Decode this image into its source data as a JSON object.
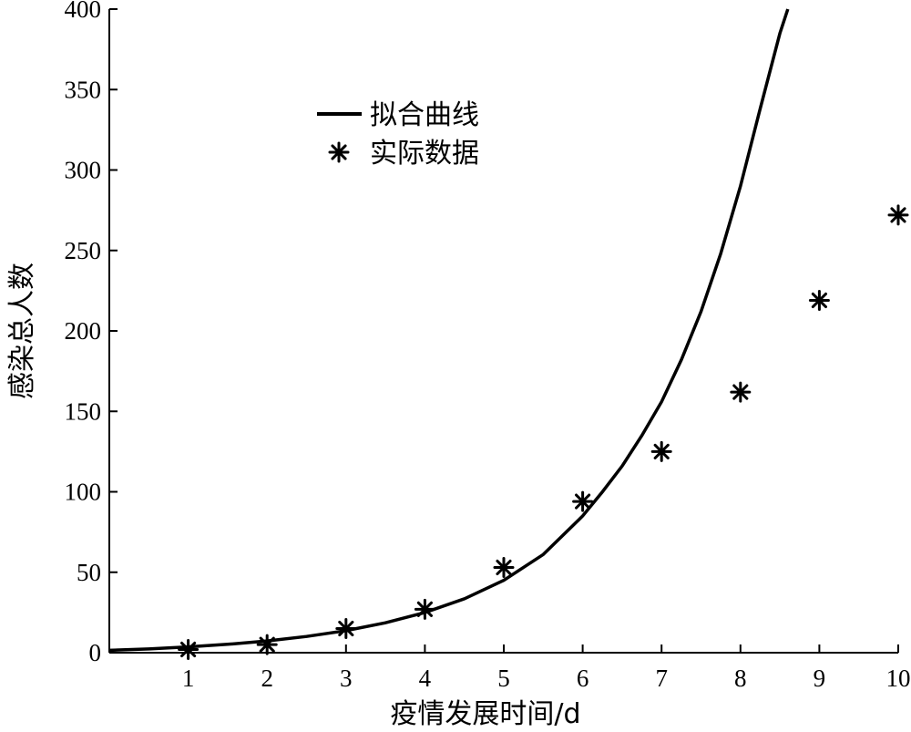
{
  "chart_data": {
    "type": "line",
    "title": "",
    "xlabel": "疫情发展时间/d",
    "ylabel": "感染总人数",
    "xlim": [
      0,
      10
    ],
    "ylim": [
      0,
      400
    ],
    "xticks": [
      1,
      2,
      3,
      4,
      5,
      6,
      7,
      8,
      9,
      10
    ],
    "yticks": [
      0,
      50,
      100,
      150,
      200,
      250,
      300,
      350,
      400
    ],
    "grid": false,
    "legend_position": "upper-left",
    "series": [
      {
        "name": "拟合曲线",
        "style": "line",
        "color": "#000000",
        "x": [
          0,
          0.5,
          1,
          1.5,
          2,
          2.5,
          3,
          3.5,
          4,
          4.5,
          5,
          5.5,
          6,
          6.25,
          6.5,
          6.75,
          7,
          7.25,
          7.5,
          7.75,
          8,
          8.25,
          8.5,
          8.6
        ],
        "y": [
          1.5,
          2.3,
          3.6,
          5.2,
          7.3,
          10.1,
          13.7,
          18.6,
          25,
          33.5,
          45,
          61,
          85,
          100,
          116,
          135,
          156,
          182,
          212,
          248,
          290,
          338,
          385,
          400
        ]
      },
      {
        "name": "实际数据",
        "style": "marker",
        "marker": "asterisk",
        "color": "#000000",
        "x": [
          1,
          2,
          3,
          4,
          5,
          6,
          7,
          8,
          9,
          10
        ],
        "y": [
          2,
          5,
          15,
          27,
          53,
          94,
          125,
          162,
          219,
          272
        ]
      }
    ]
  }
}
